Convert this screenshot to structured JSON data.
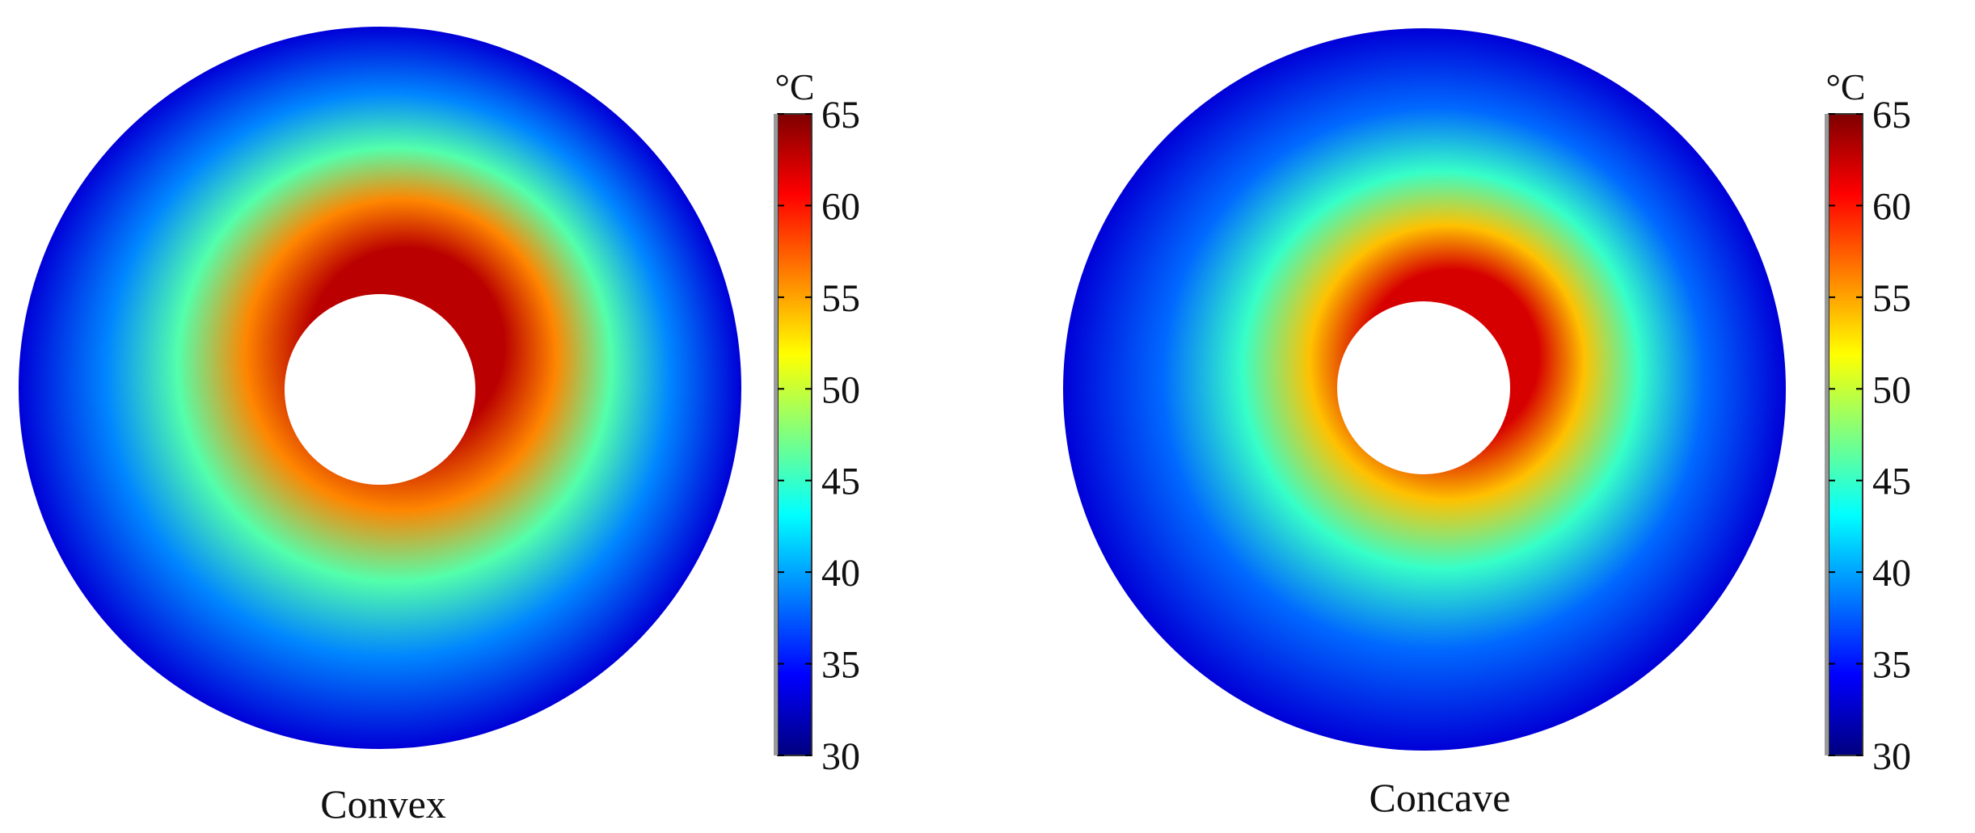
{
  "figure": {
    "panels": [
      {
        "title": "Convex"
      },
      {
        "title": "Concave"
      }
    ],
    "colorbar": {
      "unit": "°C",
      "ticks": [
        "30",
        "35",
        "40",
        "45",
        "50",
        "55",
        "60",
        "65"
      ],
      "colormap": [
        "#00007f",
        "#0000ff",
        "#007fff",
        "#00ffff",
        "#7fff7f",
        "#ffff00",
        "#ff7f00",
        "#ff0000",
        "#7f0000"
      ]
    }
  },
  "chart_data": [
    {
      "type": "heatmap",
      "title": "Convex",
      "colorbar_label": "°C",
      "clim": [
        30,
        65
      ],
      "colorbar_ticks": [
        30,
        35,
        40,
        45,
        50,
        55,
        60,
        65
      ],
      "radial_profile": [
        {
          "r_frac": 0.27,
          "value": 63
        },
        {
          "r_frac": 0.43,
          "value": 56
        },
        {
          "r_frac": 0.6,
          "value": 46
        },
        {
          "r_frac": 0.78,
          "value": 39
        },
        {
          "r_frac": 1.0,
          "value": 33
        }
      ],
      "hot_region_offset": "upper-right"
    },
    {
      "type": "heatmap",
      "title": "Concave",
      "colorbar_label": "°C",
      "clim": [
        30,
        65
      ],
      "colorbar_ticks": [
        30,
        35,
        40,
        45,
        50,
        55,
        60,
        65
      ],
      "radial_profile": [
        {
          "r_frac": 0.24,
          "value": 62
        },
        {
          "r_frac": 0.38,
          "value": 54
        },
        {
          "r_frac": 0.55,
          "value": 45
        },
        {
          "r_frac": 0.75,
          "value": 38
        },
        {
          "r_frac": 1.0,
          "value": 33
        }
      ],
      "hot_region_offset": "upper-right"
    }
  ]
}
